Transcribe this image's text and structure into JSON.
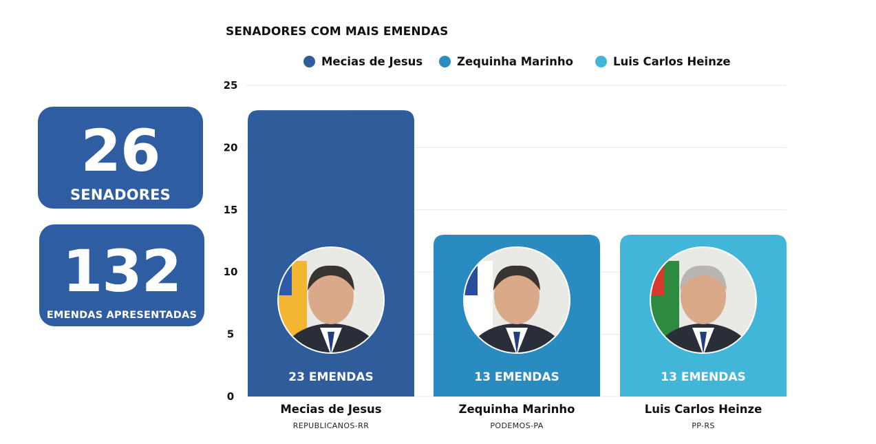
{
  "stats": [
    {
      "number": "26",
      "label": "SENADORES"
    },
    {
      "number": "132",
      "label": "EMENDAS APRESENTADAS"
    }
  ],
  "chart_data": {
    "type": "bar",
    "title": "SENADORES COM MAIS EMENDAS",
    "xlabel": "",
    "ylabel": "",
    "ylim": [
      0,
      25
    ],
    "yticks": [
      0,
      5,
      10,
      15,
      20,
      25
    ],
    "grid": true,
    "legend_position": "top",
    "categories": [
      "Mecias de Jesus",
      "Zequinha Marinho",
      "Luis Carlos Heinze"
    ],
    "parties": [
      "REPUBLICANOS-RR",
      "PODEMOS-PA",
      "PP-RS"
    ],
    "values": [
      23,
      13,
      13
    ],
    "bar_labels": [
      "23 EMENDAS",
      "13 EMENDAS",
      "13 EMENDAS"
    ],
    "colors": [
      "#2f5c9b",
      "#2a8bc0",
      "#41b6d8"
    ],
    "legend": [
      "Mecias de Jesus",
      "Zequinha Marinho",
      "Luis Carlos Heinze"
    ]
  }
}
